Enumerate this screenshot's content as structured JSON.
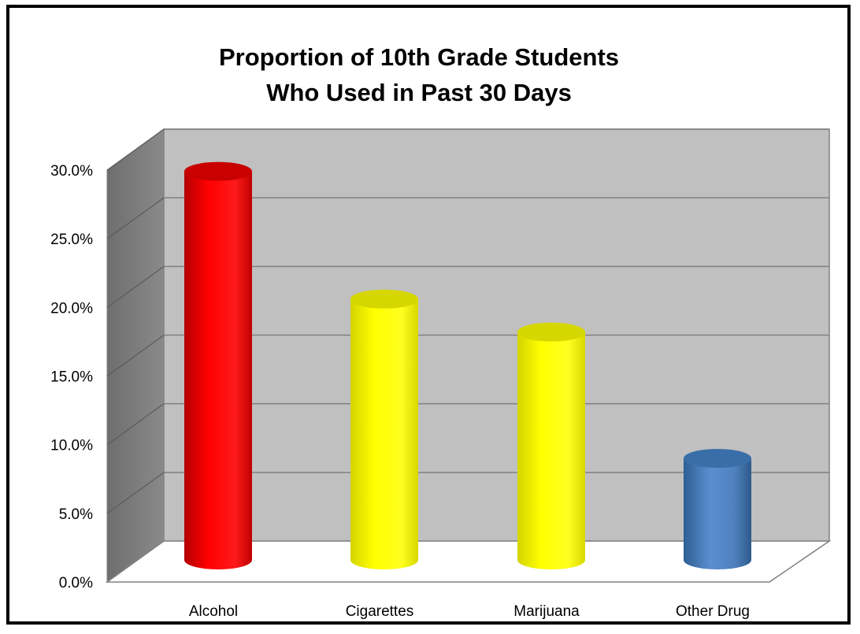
{
  "chart_data": {
    "type": "bar",
    "title_lines": [
      "Proportion of 10th Grade Students",
      "Who Used in Past 30 Days"
    ],
    "categories": [
      "Alcohol",
      "Cigarettes",
      "Marijuana",
      "Other Drug"
    ],
    "values": [
      28.3,
      19.0,
      16.6,
      7.4
    ],
    "bar_colors": [
      "#ff0000",
      "#ffff00",
      "#ffff00",
      "#4f81bd"
    ],
    "ylim": [
      0,
      30
    ],
    "yticks": [
      "0.0%",
      "5.0%",
      "10.0%",
      "15.0%",
      "20.0%",
      "25.0%",
      "30.0%"
    ],
    "bar_shape": "cylinder",
    "grid": true,
    "legend": "none"
  }
}
